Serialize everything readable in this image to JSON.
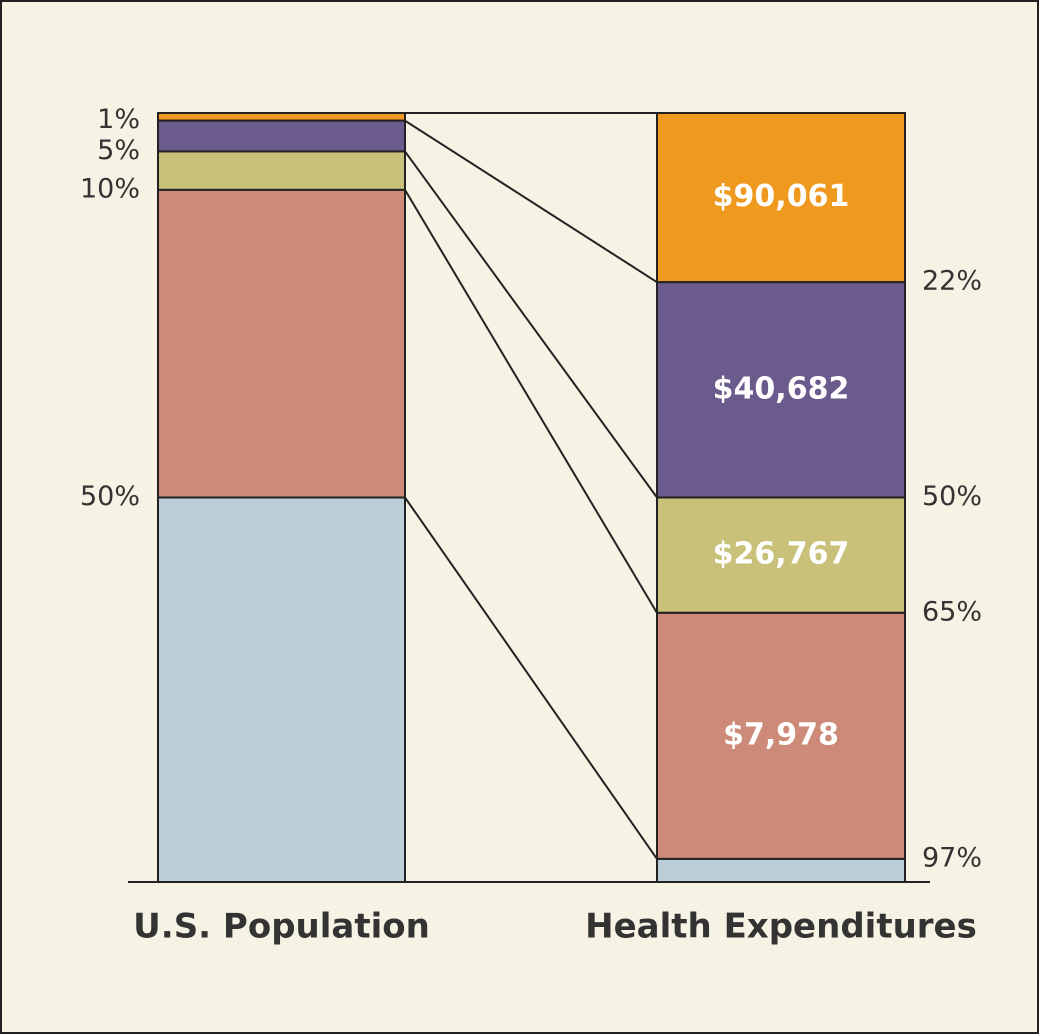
{
  "chart_data": {
    "type": "stacked_bar",
    "categories": [
      "U.S. Population",
      "Health Expenditures"
    ],
    "series": [
      {
        "color": "#ef9a1e",
        "values": [
          1,
          22
        ]
      },
      {
        "color": "#6b5b8c",
        "values": [
          4,
          28
        ]
      },
      {
        "color": "#c9c07a",
        "values": [
          5,
          15
        ]
      },
      {
        "color": "#cd8a78",
        "values": [
          40,
          32
        ]
      },
      {
        "color": "#bccdd8",
        "values": [
          50,
          3
        ]
      }
    ],
    "spending_labels": [
      "$90,061",
      "$40,682",
      "$26,767",
      "$7,978"
    ],
    "ylim": [
      100,
      0
    ],
    "yticks": [
      {
        "value": 1,
        "label": "1%"
      },
      {
        "value": 5,
        "label": "5%"
      },
      {
        "value": 10,
        "label": "10%"
      },
      {
        "value": 50,
        "label": "50%"
      }
    ],
    "y2lim": [
      100,
      0
    ],
    "y2ticks": [
      {
        "value": 22,
        "label": "22%"
      },
      {
        "value": 50,
        "label": "50%"
      },
      {
        "value": 65,
        "label": "65%"
      },
      {
        "value": 97,
        "label": "97%"
      }
    ]
  }
}
